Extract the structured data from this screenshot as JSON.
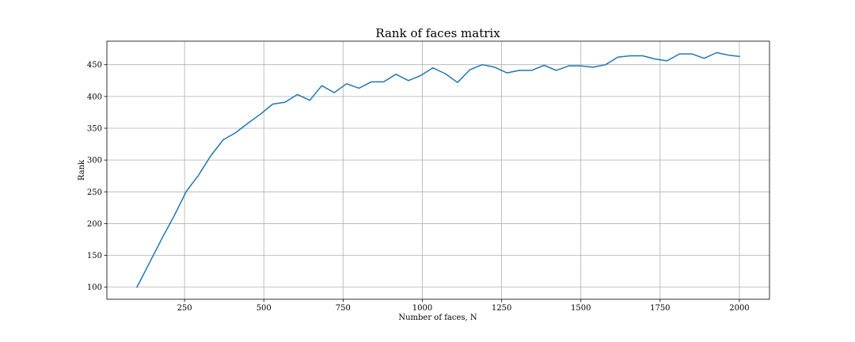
{
  "chart_data": {
    "type": "line",
    "title": "Rank of faces matrix",
    "xlabel": "Number of faces, N",
    "ylabel": "Rank",
    "xlim": [
      5,
      2095
    ],
    "ylim": [
      81,
      487
    ],
    "xticks": [
      250,
      500,
      750,
      1000,
      1250,
      1500,
      1750,
      2000
    ],
    "yticks": [
      100,
      150,
      200,
      250,
      300,
      350,
      400,
      450
    ],
    "grid": true,
    "series": [
      {
        "color": "#1f77b4",
        "x": [
          100,
          139,
          178,
          217,
          256,
          294,
          333,
          372,
          411,
          450,
          489,
          528,
          567,
          606,
          645,
          683,
          722,
          761,
          800,
          839,
          878,
          917,
          956,
          995,
          1033,
          1072,
          1111,
          1150,
          1189,
          1228,
          1267,
          1306,
          1345,
          1384,
          1422,
          1461,
          1500,
          1539,
          1578,
          1617,
          1656,
          1695,
          1734,
          1772,
          1811,
          1850,
          1889,
          1928,
          1967,
          2000
        ],
        "y": [
          100,
          138,
          176,
          212,
          251,
          276,
          307,
          332,
          343,
          358,
          372,
          388,
          391,
          403,
          394,
          417,
          406,
          420,
          413,
          423,
          423,
          435,
          425,
          433,
          445,
          436,
          422,
          442,
          450,
          446,
          437,
          441,
          441,
          449,
          441,
          448,
          448,
          446,
          450,
          462,
          464,
          464,
          459,
          456,
          467,
          467,
          460,
          469,
          465,
          463
        ]
      }
    ]
  }
}
